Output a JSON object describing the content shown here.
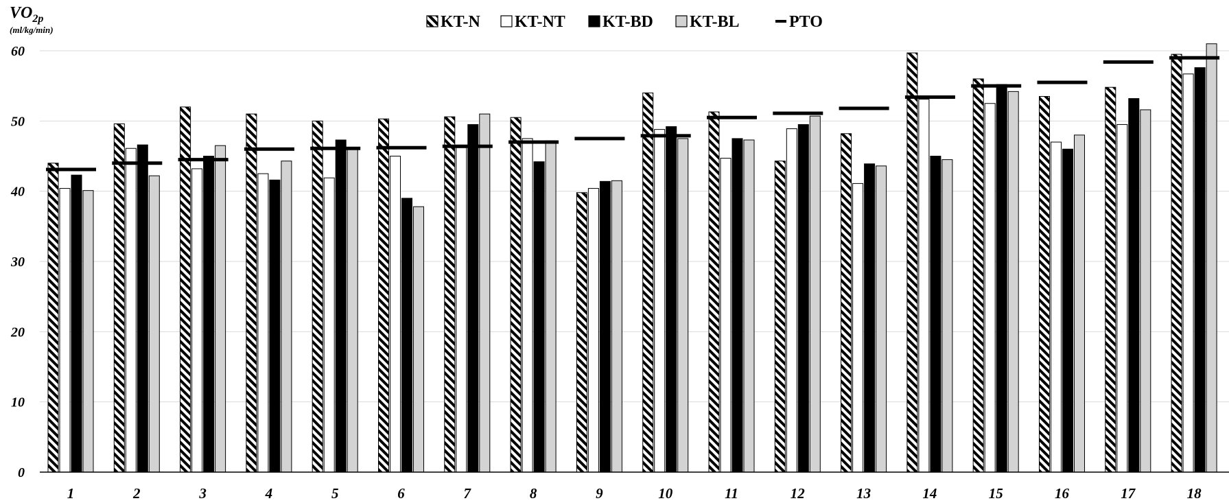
{
  "chart_data": {
    "type": "bar",
    "ylabel_main": "VO",
    "ylabel_sub": "2p",
    "ylabel_unit": "(ml/kg/min)",
    "ylim": [
      0,
      60
    ],
    "yticks": [
      "0",
      "10",
      "20",
      "30",
      "40",
      "50",
      "60"
    ],
    "grid": true,
    "legend_position": "top-center",
    "categories": [
      "1",
      "2",
      "3",
      "4",
      "5",
      "6",
      "7",
      "8",
      "9",
      "10",
      "11",
      "12",
      "13",
      "14",
      "15",
      "16",
      "17",
      "18"
    ],
    "series": [
      {
        "name": "KT-N",
        "style": "hatched",
        "color": "#000000",
        "values": [
          44.0,
          49.6,
          52.0,
          51.0,
          50.0,
          50.3,
          50.6,
          50.5,
          39.8,
          54.0,
          51.3,
          44.3,
          48.2,
          59.7,
          56.0,
          53.5,
          54.8,
          59.5
        ]
      },
      {
        "name": "KT-NT",
        "style": "white",
        "color": "#ffffff",
        "values": [
          40.4,
          46.1,
          43.2,
          42.5,
          41.9,
          45.0,
          46.2,
          47.5,
          40.4,
          48.8,
          44.7,
          48.9,
          41.1,
          53.1,
          52.5,
          47.0,
          49.5,
          56.7
        ]
      },
      {
        "name": "KT-BD",
        "style": "black",
        "color": "#000000",
        "values": [
          42.3,
          46.6,
          45.0,
          41.6,
          47.3,
          39.0,
          49.5,
          44.2,
          41.4,
          49.2,
          47.5,
          49.5,
          43.9,
          45.0,
          55.2,
          46.0,
          53.2,
          57.6
        ]
      },
      {
        "name": "KT-BL",
        "style": "gray",
        "color": "#d3d3d3",
        "values": [
          40.1,
          42.2,
          46.5,
          44.3,
          46.0,
          37.8,
          51.0,
          47.2,
          41.5,
          47.5,
          47.3,
          50.7,
          43.6,
          44.5,
          54.2,
          48.0,
          51.6,
          61.0
        ]
      },
      {
        "name": "PTO",
        "style": "marker-line",
        "color": "#000000",
        "values": [
          43.1,
          44.0,
          44.5,
          46.0,
          46.1,
          46.2,
          46.4,
          47.0,
          47.5,
          47.9,
          50.5,
          51.1,
          51.8,
          53.4,
          55.0,
          55.5,
          58.4,
          59.0
        ]
      }
    ]
  }
}
